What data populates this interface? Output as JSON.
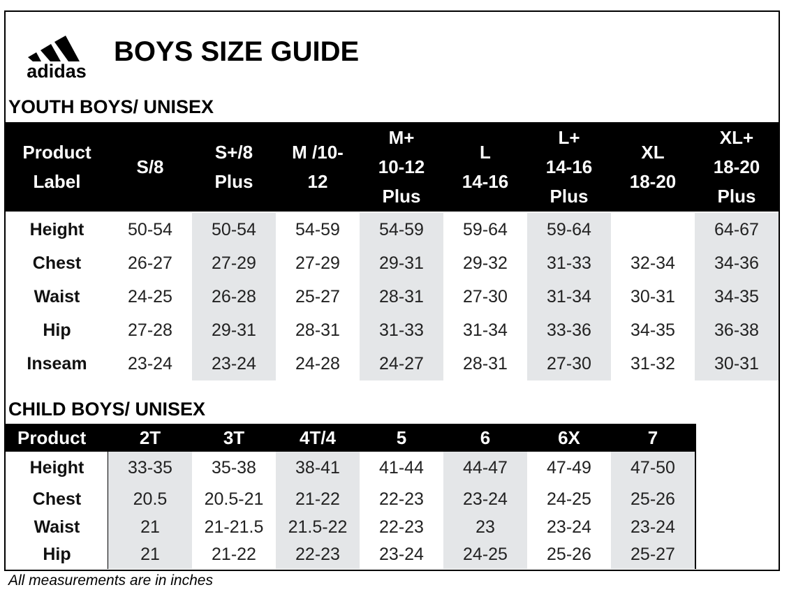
{
  "header": {
    "logo_text": "adidas",
    "title": "BOYS SIZE GUIDE"
  },
  "youth": {
    "title": "YOUTH BOYS/ UNISEX",
    "columns": [
      "Product\nLabel",
      "S/8",
      "S+/8\nPlus",
      "M /10-\n12",
      "M+\n10-12\nPlus",
      "L\n14-16",
      "L+\n14-16\nPlus",
      "XL\n18-20",
      "XL+\n18-20\nPlus"
    ],
    "rows": [
      [
        "Height",
        "50-54",
        "50-54",
        "54-59",
        "54-59",
        "59-64",
        "59-64",
        null,
        "64-67"
      ],
      [
        "Chest",
        "26-27",
        "27-29",
        "27-29",
        "29-31",
        "29-32",
        "31-33",
        "32-34",
        "34-36"
      ],
      [
        "Waist",
        "24-25",
        "26-28",
        "25-27",
        "28-31",
        "27-30",
        "31-34",
        "30-31",
        "34-35"
      ],
      [
        "Hip",
        "27-28",
        "29-31",
        "28-31",
        "31-33",
        "31-34",
        "33-36",
        "34-35",
        "36-38"
      ],
      [
        "Inseam",
        "23-24",
        "23-24",
        "24-28",
        "24-27",
        "28-31",
        "27-30",
        "31-32",
        "30-31"
      ]
    ]
  },
  "child": {
    "title": "CHILD BOYS/ UNISEX",
    "columns": [
      "Product",
      "2T",
      "3T",
      "4T/4",
      "5",
      "6",
      "6X",
      "7"
    ],
    "rows": [
      [
        "Height",
        "33-35",
        "35-38",
        "38-41",
        "41-44",
        "44-47",
        "47-49",
        "47-50"
      ],
      [
        "Chest",
        "20.5",
        "20.5-21",
        "21-22",
        "22-23",
        "23-24",
        "24-25",
        "25-26"
      ],
      [
        "Waist",
        "21",
        "21-21.5",
        "21.5-22",
        "22-23",
        "23",
        "23-24",
        "23-24"
      ],
      [
        "Hip",
        "21",
        "21-22",
        "22-23",
        "23-24",
        "24-25",
        "25-26",
        "25-27"
      ]
    ]
  },
  "footnote": "All measurements are in inches"
}
